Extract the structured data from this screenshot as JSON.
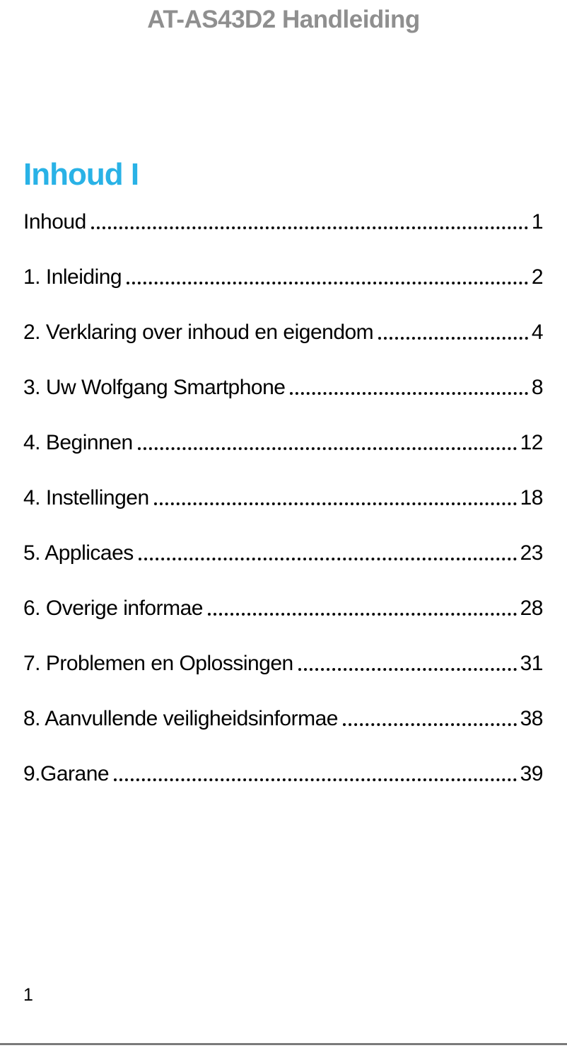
{
  "page": {
    "header_title": "AT-AS43D2 Handleiding",
    "footer_page_number": "1"
  },
  "toc": {
    "heading": "Inhoud I",
    "items": [
      {
        "label": "Inhoud",
        "page": "1"
      },
      {
        "label": "1. Inleiding",
        "page": "2"
      },
      {
        "label": "2. Verklaring over inhoud en eigendom",
        "page": "4"
      },
      {
        "label": "3. Uw Wolfgang Smartphone",
        "page": "8"
      },
      {
        "label": "4. Beginnen",
        "page": "12"
      },
      {
        "label": "4. Instellingen",
        "page": "18"
      },
      {
        "label": "5. Applicaes",
        "page": "23"
      },
      {
        "label": "6. Overige informae",
        "page": "28"
      },
      {
        "label": "7. Problemen en Oplossingen",
        "page": "31"
      },
      {
        "label": "8. Aanvullende veiligheidsinformae",
        "page": "38"
      },
      {
        "label": "9.Garane",
        "page": "39"
      }
    ]
  },
  "colors": {
    "heading_accent": "#29b2e6",
    "header_gray": "#8f8f8f",
    "footer_line": "#7a7a7a",
    "body_text": "#000000"
  }
}
